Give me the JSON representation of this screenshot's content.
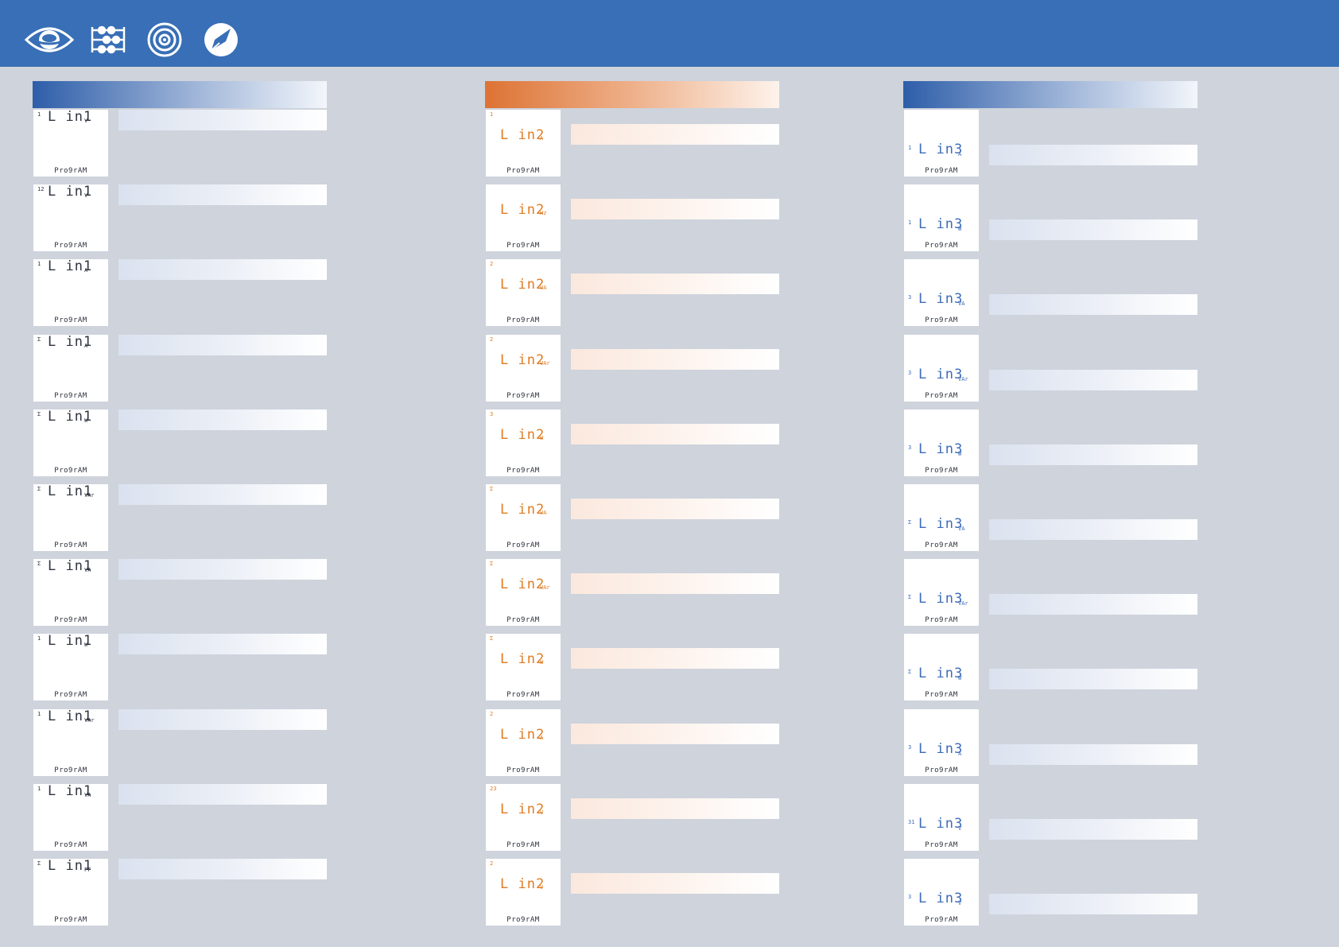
{
  "icons": [
    "eye-icon",
    "sliders-icon",
    "target-icon",
    "edit-icon"
  ],
  "columns": [
    {
      "name": "line-1",
      "rows": [
        {
          "idx": "1",
          "code": "L in1",
          "unit": "V",
          "prog": "Pro9rAM"
        },
        {
          "idx": "12",
          "code": "L in1",
          "unit": "V",
          "prog": "Pro9rAM"
        },
        {
          "idx": "1",
          "code": "L in1",
          "unit": "A",
          "prog": "Pro9rAM"
        },
        {
          "idx": "Σ",
          "code": "L in1",
          "unit": "A",
          "prog": "Pro9rAM"
        },
        {
          "idx": "Σ",
          "code": "L in1",
          "unit": "W",
          "prog": "Pro9rAM"
        },
        {
          "idx": "Σ",
          "code": "L in1",
          "unit": "VAr",
          "prog": "Pro9rAM"
        },
        {
          "idx": "Σ",
          "code": "L in1",
          "unit": "VA",
          "prog": "Pro9rAM"
        },
        {
          "idx": "1",
          "code": "L in1",
          "unit": "W",
          "prog": "Pro9rAM"
        },
        {
          "idx": "1",
          "code": "L in1",
          "unit": "VAr",
          "prog": "Pro9rAM"
        },
        {
          "idx": "1",
          "code": "L in1",
          "unit": "VA",
          "prog": "Pro9rAM"
        },
        {
          "idx": "Σ",
          "code": "L in1",
          "unit": "PF",
          "prog": "Pro9rAM"
        }
      ]
    },
    {
      "name": "line-2",
      "rows": [
        {
          "idx": "1",
          "code": "L in2",
          "unit": "A",
          "prog": "Pro9rAM"
        },
        {
          "idx": "",
          "code": "L in2",
          "unit": "Hz",
          "prog": "Pro9rAM"
        },
        {
          "idx": "2",
          "code": "L in2",
          "unit": "VA",
          "prog": "Pro9rAM"
        },
        {
          "idx": "2",
          "code": "L in2",
          "unit": "VAr",
          "prog": "Pro9rAM"
        },
        {
          "idx": "3",
          "code": "L in2",
          "unit": "W",
          "prog": "Pro9rAM"
        },
        {
          "idx": "Σ",
          "code": "L in2",
          "unit": "VA",
          "prog": "Pro9rAM"
        },
        {
          "idx": "Σ",
          "code": "L in2",
          "unit": "VAr",
          "prog": "Pro9rAM"
        },
        {
          "idx": "Σ",
          "code": "L in2",
          "unit": "W",
          "prog": "Pro9rAM"
        },
        {
          "idx": "2",
          "code": "L in2",
          "unit": "A",
          "prog": "Pro9rAM"
        },
        {
          "idx": "23",
          "code": "L in2",
          "unit": "V",
          "prog": "Pro9rAM"
        },
        {
          "idx": "2",
          "code": "L in2",
          "unit": "V",
          "prog": "Pro9rAM"
        }
      ]
    },
    {
      "name": "line-3",
      "rows": [
        {
          "idx": "1",
          "code": "L in3",
          "unit": "A",
          "prog": "Pro9rAM"
        },
        {
          "idx": "1",
          "code": "L in3",
          "unit": "W",
          "prog": "Pro9rAM"
        },
        {
          "idx": "3",
          "code": "L in3",
          "unit": "VA",
          "prog": "Pro9rAM"
        },
        {
          "idx": "3",
          "code": "L in3",
          "unit": "VAr",
          "prog": "Pro9rAM"
        },
        {
          "idx": "3",
          "code": "L in3",
          "unit": "W",
          "prog": "Pro9rAM"
        },
        {
          "idx": "Σ",
          "code": "L in3",
          "unit": "VA",
          "prog": "Pro9rAM"
        },
        {
          "idx": "Σ",
          "code": "L in3",
          "unit": "VAr",
          "prog": "Pro9rAM"
        },
        {
          "idx": "Σ",
          "code": "L in3",
          "unit": "W",
          "prog": "Pro9rAM"
        },
        {
          "idx": "3",
          "code": "L in3",
          "unit": "A",
          "prog": "Pro9rAM"
        },
        {
          "idx": "31",
          "code": "L in3",
          "unit": "V",
          "prog": "Pro9rAM"
        },
        {
          "idx": "3",
          "code": "L in3",
          "unit": "V",
          "prog": "Pro9rAM"
        }
      ]
    }
  ]
}
